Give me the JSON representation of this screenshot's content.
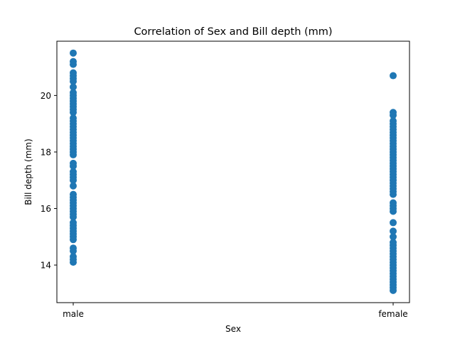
{
  "chart_data": {
    "type": "scatter",
    "title": "Correlation of Sex and Bill depth (mm)",
    "xlabel": "Sex",
    "ylabel": "Bill depth (mm)",
    "categories": [
      "male",
      "female"
    ],
    "ylim": [
      12.67,
      21.92
    ],
    "yticks": [
      "14",
      "16",
      "18",
      "20"
    ],
    "grid": false,
    "legend": "none",
    "color": "#1f77b4",
    "series": [
      {
        "category": "male",
        "values": [
          21.5,
          21.2,
          21.1,
          20.8,
          20.7,
          20.6,
          20.5,
          20.3,
          20.1,
          20.0,
          19.9,
          19.8,
          19.7,
          19.6,
          19.5,
          19.4,
          19.2,
          19.1,
          19.0,
          18.9,
          18.8,
          18.7,
          18.6,
          18.5,
          18.4,
          18.3,
          18.2,
          18.1,
          18.0,
          17.9,
          17.6,
          17.5,
          17.3,
          17.2,
          17.1,
          17.0,
          16.8,
          16.5,
          16.4,
          16.3,
          16.2,
          16.1,
          16.0,
          15.9,
          15.8,
          15.7,
          15.5,
          15.4,
          15.3,
          15.2,
          15.1,
          15.0,
          14.9,
          14.6,
          14.5,
          14.3,
          14.2,
          14.1
        ]
      },
      {
        "category": "female",
        "values": [
          20.7,
          19.4,
          19.3,
          19.1,
          19.0,
          18.9,
          18.8,
          18.7,
          18.6,
          18.5,
          18.4,
          18.3,
          18.2,
          18.1,
          18.0,
          17.9,
          17.8,
          17.7,
          17.6,
          17.5,
          17.4,
          17.3,
          17.2,
          17.1,
          17.0,
          16.9,
          16.8,
          16.7,
          16.6,
          16.5,
          16.2,
          16.1,
          16.0,
          15.9,
          15.5,
          15.2,
          15.0,
          14.8,
          14.7,
          14.6,
          14.5,
          14.4,
          14.3,
          14.2,
          14.1,
          14.0,
          13.9,
          13.8,
          13.7,
          13.6,
          13.5,
          13.4,
          13.3,
          13.2,
          13.1
        ]
      }
    ]
  }
}
